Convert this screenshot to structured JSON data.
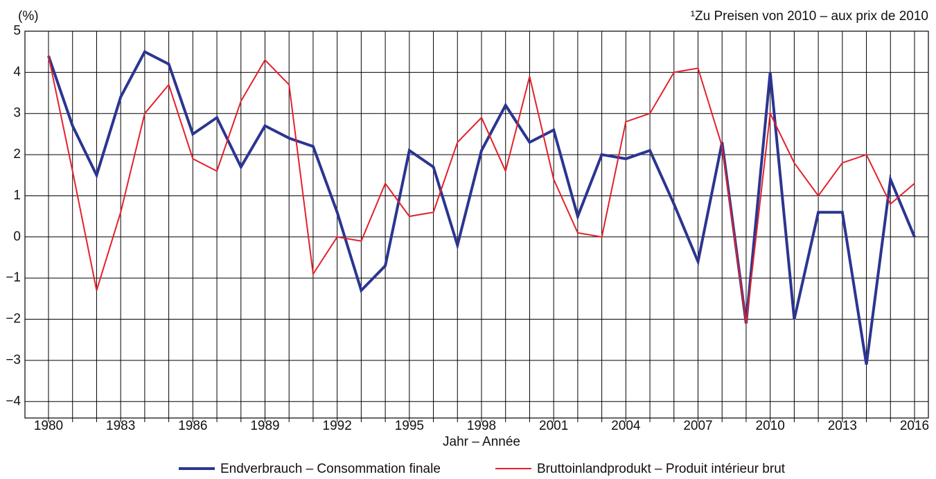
{
  "chart_data": {
    "type": "line",
    "y_unit_label": "(%)",
    "note": "¹Zu Preisen von 2010 – aux prix de 2010",
    "x_label": "Jahr – Année",
    "categories": [
      "1980",
      null,
      null,
      "1983",
      null,
      null,
      "1986",
      null,
      null,
      "1989",
      null,
      null,
      "1992",
      null,
      null,
      "1995",
      null,
      null,
      "1998",
      null,
      null,
      "2001",
      null,
      null,
      "2004",
      null,
      null,
      "2007",
      null,
      null,
      "2010",
      null,
      null,
      "2013",
      null,
      null,
      "2016"
    ],
    "series": [
      {
        "name": "Endverbrauch – Consommation finale",
        "color": "#2b3590",
        "width": 4,
        "values": [
          4.4,
          2.7,
          1.5,
          3.4,
          4.5,
          4.2,
          2.5,
          2.9,
          1.7,
          2.7,
          2.4,
          2.2,
          0.6,
          -1.3,
          -0.7,
          2.1,
          1.7,
          -0.2,
          2.1,
          3.2,
          2.3,
          2.6,
          0.5,
          2.0,
          1.9,
          2.1,
          0.8,
          -0.6,
          2.3,
          -2.1,
          4.0,
          -2.0,
          0.6,
          0.6,
          -3.1,
          1.4,
          0.0
        ]
      },
      {
        "name": "Bruttoinlandprodukt – Produit intérieur brut",
        "color": "#e3202a",
        "width": 2,
        "values": [
          4.4,
          1.6,
          -1.3,
          0.6,
          3.0,
          3.7,
          1.9,
          1.6,
          3.3,
          4.3,
          3.7,
          -0.9,
          0.0,
          -0.1,
          1.3,
          0.5,
          0.6,
          2.3,
          2.9,
          1.6,
          3.9,
          1.4,
          0.1,
          0.0,
          2.8,
          3.0,
          4.0,
          4.1,
          2.2,
          -2.1,
          3.0,
          1.8,
          1.0,
          1.8,
          2.0,
          0.8,
          1.3
        ]
      }
    ],
    "ylim": [
      -4.4,
      5
    ],
    "yticks": [
      {
        "value": -4,
        "label": "−4"
      },
      {
        "value": -3,
        "label": "−3"
      },
      {
        "value": -2,
        "label": "−2"
      },
      {
        "value": -1,
        "label": "−1"
      },
      0,
      1,
      2,
      3,
      4,
      5
    ],
    "grid": true
  }
}
